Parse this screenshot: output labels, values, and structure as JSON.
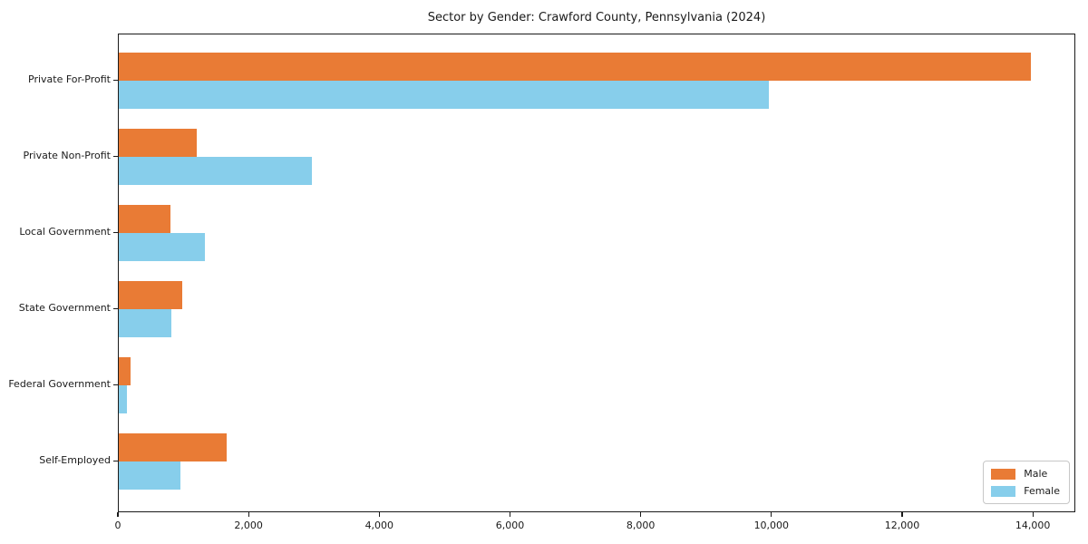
{
  "chart_data": {
    "type": "bar",
    "orientation": "horizontal",
    "title": "Sector by Gender: Crawford County, Pennsylvania (2024)",
    "xlabel": "",
    "ylabel": "",
    "categories": [
      "Private For-Profit",
      "Private Non-Profit",
      "Local Government",
      "State Government",
      "Federal Government",
      "Self-Employed"
    ],
    "series": [
      {
        "name": "Male",
        "color": "#e97b35",
        "values": [
          13950,
          1190,
          785,
          970,
          175,
          1650
        ]
      },
      {
        "name": "Female",
        "color": "#87ceeb",
        "values": [
          9940,
          2950,
          1315,
          805,
          130,
          940
        ]
      }
    ],
    "xlim": [
      0,
      14650
    ],
    "xticks": [
      0,
      2000,
      4000,
      6000,
      8000,
      10000,
      12000,
      14000
    ],
    "xtick_labels": [
      "0",
      "2,000",
      "4,000",
      "6,000",
      "8,000",
      "10,000",
      "12,000",
      "14,000"
    ],
    "grid": false,
    "legend_position": "lower right",
    "spine_color": "#1a1a1a",
    "background_color": "#ffffff"
  }
}
